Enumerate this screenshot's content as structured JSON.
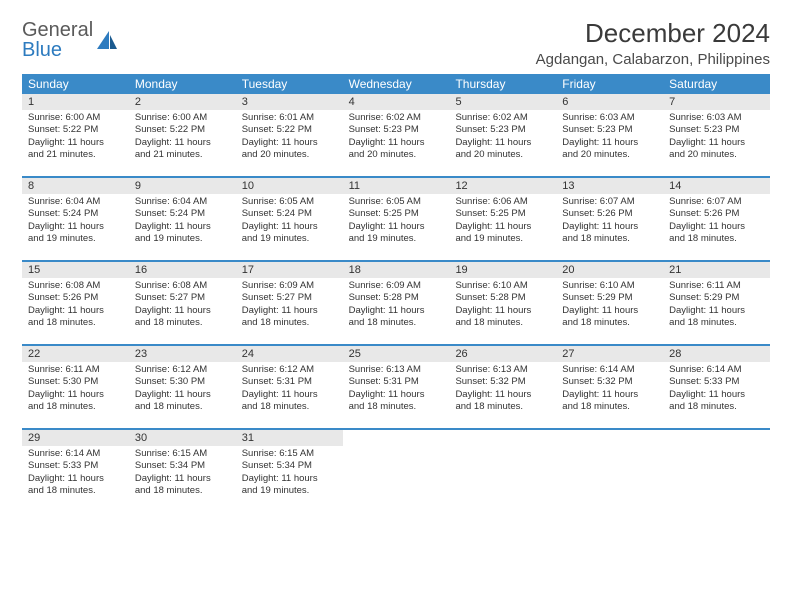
{
  "logo": {
    "word1": "General",
    "word2": "Blue"
  },
  "title": "December 2024",
  "location": "Agdangan, Calabarzon, Philippines",
  "colors": {
    "header_bg": "#3a8ac8",
    "header_text": "#ffffff",
    "daynum_bg": "#e8e8e8",
    "border": "#3a8ac8",
    "text": "#333333",
    "logo_gray": "#5a5a5a",
    "logo_blue": "#2d7bbf"
  },
  "typography": {
    "title_fontsize": 26,
    "location_fontsize": 15,
    "dayheader_fontsize": 12,
    "daynum_fontsize": 11,
    "body_fontsize": 9.5
  },
  "dayNames": [
    "Sunday",
    "Monday",
    "Tuesday",
    "Wednesday",
    "Thursday",
    "Friday",
    "Saturday"
  ],
  "weeks": [
    [
      {
        "n": "1",
        "sr": "Sunrise: 6:00 AM",
        "ss": "Sunset: 5:22 PM",
        "d1": "Daylight: 11 hours",
        "d2": "and 21 minutes."
      },
      {
        "n": "2",
        "sr": "Sunrise: 6:00 AM",
        "ss": "Sunset: 5:22 PM",
        "d1": "Daylight: 11 hours",
        "d2": "and 21 minutes."
      },
      {
        "n": "3",
        "sr": "Sunrise: 6:01 AM",
        "ss": "Sunset: 5:22 PM",
        "d1": "Daylight: 11 hours",
        "d2": "and 20 minutes."
      },
      {
        "n": "4",
        "sr": "Sunrise: 6:02 AM",
        "ss": "Sunset: 5:23 PM",
        "d1": "Daylight: 11 hours",
        "d2": "and 20 minutes."
      },
      {
        "n": "5",
        "sr": "Sunrise: 6:02 AM",
        "ss": "Sunset: 5:23 PM",
        "d1": "Daylight: 11 hours",
        "d2": "and 20 minutes."
      },
      {
        "n": "6",
        "sr": "Sunrise: 6:03 AM",
        "ss": "Sunset: 5:23 PM",
        "d1": "Daylight: 11 hours",
        "d2": "and 20 minutes."
      },
      {
        "n": "7",
        "sr": "Sunrise: 6:03 AM",
        "ss": "Sunset: 5:23 PM",
        "d1": "Daylight: 11 hours",
        "d2": "and 20 minutes."
      }
    ],
    [
      {
        "n": "8",
        "sr": "Sunrise: 6:04 AM",
        "ss": "Sunset: 5:24 PM",
        "d1": "Daylight: 11 hours",
        "d2": "and 19 minutes."
      },
      {
        "n": "9",
        "sr": "Sunrise: 6:04 AM",
        "ss": "Sunset: 5:24 PM",
        "d1": "Daylight: 11 hours",
        "d2": "and 19 minutes."
      },
      {
        "n": "10",
        "sr": "Sunrise: 6:05 AM",
        "ss": "Sunset: 5:24 PM",
        "d1": "Daylight: 11 hours",
        "d2": "and 19 minutes."
      },
      {
        "n": "11",
        "sr": "Sunrise: 6:05 AM",
        "ss": "Sunset: 5:25 PM",
        "d1": "Daylight: 11 hours",
        "d2": "and 19 minutes."
      },
      {
        "n": "12",
        "sr": "Sunrise: 6:06 AM",
        "ss": "Sunset: 5:25 PM",
        "d1": "Daylight: 11 hours",
        "d2": "and 19 minutes."
      },
      {
        "n": "13",
        "sr": "Sunrise: 6:07 AM",
        "ss": "Sunset: 5:26 PM",
        "d1": "Daylight: 11 hours",
        "d2": "and 18 minutes."
      },
      {
        "n": "14",
        "sr": "Sunrise: 6:07 AM",
        "ss": "Sunset: 5:26 PM",
        "d1": "Daylight: 11 hours",
        "d2": "and 18 minutes."
      }
    ],
    [
      {
        "n": "15",
        "sr": "Sunrise: 6:08 AM",
        "ss": "Sunset: 5:26 PM",
        "d1": "Daylight: 11 hours",
        "d2": "and 18 minutes."
      },
      {
        "n": "16",
        "sr": "Sunrise: 6:08 AM",
        "ss": "Sunset: 5:27 PM",
        "d1": "Daylight: 11 hours",
        "d2": "and 18 minutes."
      },
      {
        "n": "17",
        "sr": "Sunrise: 6:09 AM",
        "ss": "Sunset: 5:27 PM",
        "d1": "Daylight: 11 hours",
        "d2": "and 18 minutes."
      },
      {
        "n": "18",
        "sr": "Sunrise: 6:09 AM",
        "ss": "Sunset: 5:28 PM",
        "d1": "Daylight: 11 hours",
        "d2": "and 18 minutes."
      },
      {
        "n": "19",
        "sr": "Sunrise: 6:10 AM",
        "ss": "Sunset: 5:28 PM",
        "d1": "Daylight: 11 hours",
        "d2": "and 18 minutes."
      },
      {
        "n": "20",
        "sr": "Sunrise: 6:10 AM",
        "ss": "Sunset: 5:29 PM",
        "d1": "Daylight: 11 hours",
        "d2": "and 18 minutes."
      },
      {
        "n": "21",
        "sr": "Sunrise: 6:11 AM",
        "ss": "Sunset: 5:29 PM",
        "d1": "Daylight: 11 hours",
        "d2": "and 18 minutes."
      }
    ],
    [
      {
        "n": "22",
        "sr": "Sunrise: 6:11 AM",
        "ss": "Sunset: 5:30 PM",
        "d1": "Daylight: 11 hours",
        "d2": "and 18 minutes."
      },
      {
        "n": "23",
        "sr": "Sunrise: 6:12 AM",
        "ss": "Sunset: 5:30 PM",
        "d1": "Daylight: 11 hours",
        "d2": "and 18 minutes."
      },
      {
        "n": "24",
        "sr": "Sunrise: 6:12 AM",
        "ss": "Sunset: 5:31 PM",
        "d1": "Daylight: 11 hours",
        "d2": "and 18 minutes."
      },
      {
        "n": "25",
        "sr": "Sunrise: 6:13 AM",
        "ss": "Sunset: 5:31 PM",
        "d1": "Daylight: 11 hours",
        "d2": "and 18 minutes."
      },
      {
        "n": "26",
        "sr": "Sunrise: 6:13 AM",
        "ss": "Sunset: 5:32 PM",
        "d1": "Daylight: 11 hours",
        "d2": "and 18 minutes."
      },
      {
        "n": "27",
        "sr": "Sunrise: 6:14 AM",
        "ss": "Sunset: 5:32 PM",
        "d1": "Daylight: 11 hours",
        "d2": "and 18 minutes."
      },
      {
        "n": "28",
        "sr": "Sunrise: 6:14 AM",
        "ss": "Sunset: 5:33 PM",
        "d1": "Daylight: 11 hours",
        "d2": "and 18 minutes."
      }
    ],
    [
      {
        "n": "29",
        "sr": "Sunrise: 6:14 AM",
        "ss": "Sunset: 5:33 PM",
        "d1": "Daylight: 11 hours",
        "d2": "and 18 minutes."
      },
      {
        "n": "30",
        "sr": "Sunrise: 6:15 AM",
        "ss": "Sunset: 5:34 PM",
        "d1": "Daylight: 11 hours",
        "d2": "and 18 minutes."
      },
      {
        "n": "31",
        "sr": "Sunrise: 6:15 AM",
        "ss": "Sunset: 5:34 PM",
        "d1": "Daylight: 11 hours",
        "d2": "and 19 minutes."
      },
      {
        "empty": true
      },
      {
        "empty": true
      },
      {
        "empty": true
      },
      {
        "empty": true
      }
    ]
  ]
}
